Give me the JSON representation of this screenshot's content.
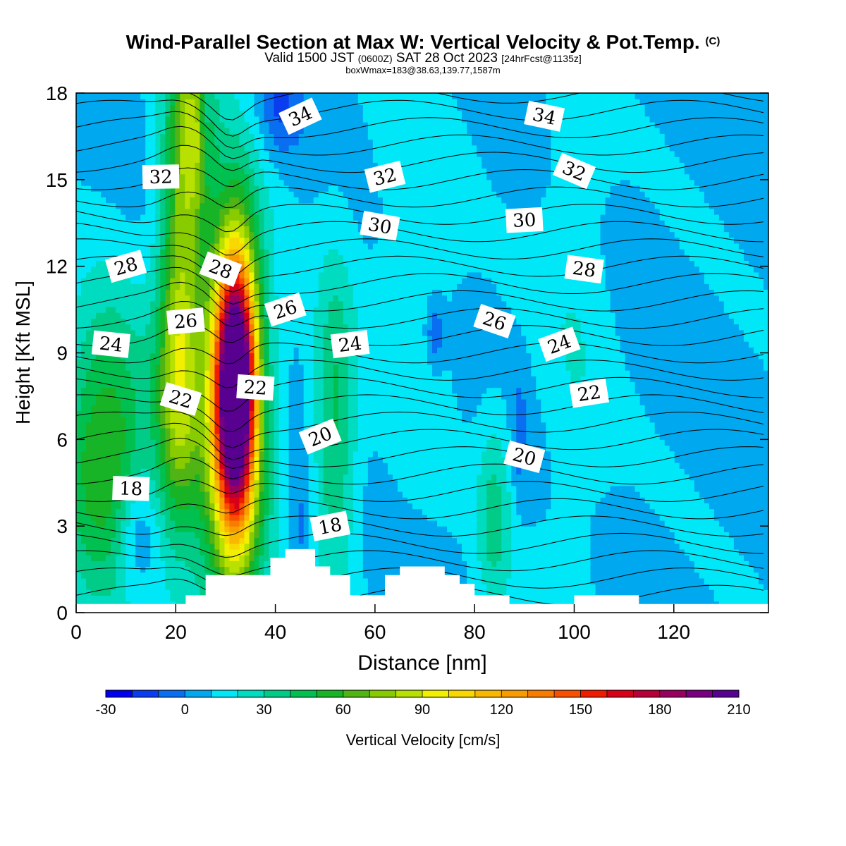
{
  "header": {
    "title": "Wind-Parallel Section at Max W: Vertical Velocity & Pot.Temp.",
    "copyright": "(C)",
    "valid_prefix": "Valid 1500 JST",
    "valid_z": "(0600Z)",
    "valid_date": "SAT 28 Oct 2023",
    "forecast": "[24hrFcst@1135z]",
    "box_info": "boxWmax=183@38.63,139.77,1587m"
  },
  "chart_data": {
    "type": "heatmap",
    "xlabel": "Distance [nm]",
    "ylabel": "Height [Kft MSL]",
    "xlim": [
      0,
      139
    ],
    "ylim": [
      0,
      18
    ],
    "xticks": [
      0,
      20,
      40,
      60,
      80,
      100,
      120
    ],
    "yticks": [
      0,
      3,
      6,
      9,
      12,
      15,
      18
    ],
    "colorbar": {
      "label": "Vertical Velocity [cm/s]",
      "min": -30,
      "step": 10,
      "tick_values": [
        -30,
        0,
        30,
        60,
        90,
        120,
        150,
        180,
        210
      ],
      "colors": [
        "#0000ee",
        "#0a3cf0",
        "#0a6ef0",
        "#00a8f0",
        "#00e8f8",
        "#00dcc0",
        "#00cc88",
        "#00c050",
        "#18b428",
        "#50b414",
        "#88cc00",
        "#b8e000",
        "#f0f000",
        "#f8d800",
        "#f8b800",
        "#f89c00",
        "#f87c00",
        "#f85000",
        "#f01c00",
        "#d80018",
        "#b80038",
        "#980060",
        "#780080",
        "#580090"
      ]
    },
    "terrain_kft": [
      [
        0,
        0.3
      ],
      [
        22,
        0.3
      ],
      [
        22,
        0.6
      ],
      [
        26,
        0.6
      ],
      [
        26,
        1.3
      ],
      [
        39,
        1.3
      ],
      [
        39,
        1.9
      ],
      [
        42,
        1.9
      ],
      [
        42,
        2.2
      ],
      [
        48,
        2.2
      ],
      [
        48,
        1.6
      ],
      [
        51,
        1.6
      ],
      [
        51,
        1.3
      ],
      [
        55,
        1.3
      ],
      [
        55,
        0.6
      ],
      [
        62,
        0.6
      ],
      [
        62,
        1.3
      ],
      [
        65,
        1.3
      ],
      [
        65,
        1.6
      ],
      [
        74,
        1.6
      ],
      [
        74,
        1.3
      ],
      [
        77,
        1.3
      ],
      [
        77,
        1.0
      ],
      [
        80,
        1.0
      ],
      [
        80,
        0.6
      ],
      [
        87,
        0.6
      ],
      [
        87,
        0.3
      ],
      [
        100,
        0.3
      ],
      [
        100,
        0.6
      ],
      [
        113,
        0.6
      ],
      [
        113,
        0.3
      ],
      [
        139,
        0.3
      ]
    ],
    "w_cells": [
      {
        "x": 32,
        "z": 7.8,
        "sx": 2.8,
        "sz": 3.2,
        "v": 215
      },
      {
        "x": 31,
        "z": 6.5,
        "sx": 5.2,
        "sz": 5.8,
        "v": 65
      },
      {
        "x": 21,
        "z": 12.5,
        "sx": 3.0,
        "sz": 5.5,
        "v": 55
      },
      {
        "x": 24,
        "z": 17.0,
        "sx": 2.5,
        "sz": 2.5,
        "v": 45
      },
      {
        "x": 6,
        "z": 5.5,
        "sx": 6.5,
        "sz": 3.5,
        "v": 55
      },
      {
        "x": 20,
        "z": 7.0,
        "sx": 3.0,
        "sz": 3.0,
        "v": 35
      },
      {
        "x": 52,
        "z": 6.5,
        "sx": 3.0,
        "sz": 4.0,
        "v": 35
      },
      {
        "x": 84,
        "z": 3.3,
        "sx": 2.5,
        "sz": 2.5,
        "v": 25
      },
      {
        "x": 68,
        "z": 12.0,
        "sx": 6.0,
        "sz": 5.0,
        "v": 10
      },
      {
        "x": 100,
        "z": 10.0,
        "sx": 5.0,
        "sz": 7.0,
        "v": 10
      },
      {
        "x": 12,
        "z": 2.8,
        "sx": 3.0,
        "sz": 1.5,
        "v": -25
      },
      {
        "x": 41,
        "z": 17.5,
        "sx": 3.0,
        "sz": 1.2,
        "v": -20
      },
      {
        "x": 72,
        "z": 9.7,
        "sx": 1.2,
        "sz": 0.8,
        "v": -20
      },
      {
        "x": 89,
        "z": 6.0,
        "sx": 1.0,
        "sz": 1.5,
        "v": -15
      },
      {
        "x": 45,
        "z": 3.0,
        "sx": 1.5,
        "sz": 1.5,
        "v": -15
      },
      {
        "x": 26,
        "z": 17.5,
        "sx": 0.8,
        "sz": 2.0,
        "v": -20
      }
    ],
    "theta_labels": [
      {
        "text": "34",
        "x": 45,
        "z": 17.2
      },
      {
        "text": "34",
        "x": 94,
        "z": 17.2
      },
      {
        "text": "32",
        "x": 17,
        "z": 15.1
      },
      {
        "text": "32",
        "x": 62,
        "z": 15.1
      },
      {
        "text": "32",
        "x": 100,
        "z": 15.3
      },
      {
        "text": "30",
        "x": 61,
        "z": 13.4
      },
      {
        "text": "30",
        "x": 90,
        "z": 13.6
      },
      {
        "text": "28",
        "x": 10,
        "z": 12.0
      },
      {
        "text": "28",
        "x": 29,
        "z": 11.9
      },
      {
        "text": "28",
        "x": 102,
        "z": 11.9
      },
      {
        "text": "26",
        "x": 22,
        "z": 10.1
      },
      {
        "text": "26",
        "x": 42,
        "z": 10.5
      },
      {
        "text": "26",
        "x": 84,
        "z": 10.1
      },
      {
        "text": "24",
        "x": 7,
        "z": 9.3
      },
      {
        "text": "24",
        "x": 55,
        "z": 9.3
      },
      {
        "text": "24",
        "x": 97,
        "z": 9.3
      },
      {
        "text": "22",
        "x": 21,
        "z": 7.4
      },
      {
        "text": "22",
        "x": 36,
        "z": 7.8
      },
      {
        "text": "22",
        "x": 103,
        "z": 7.6
      },
      {
        "text": "20",
        "x": 49,
        "z": 6.1
      },
      {
        "text": "20",
        "x": 90,
        "z": 5.4
      },
      {
        "text": "18",
        "x": 11,
        "z": 4.3
      },
      {
        "text": "18",
        "x": 51,
        "z": 3.0
      }
    ]
  }
}
